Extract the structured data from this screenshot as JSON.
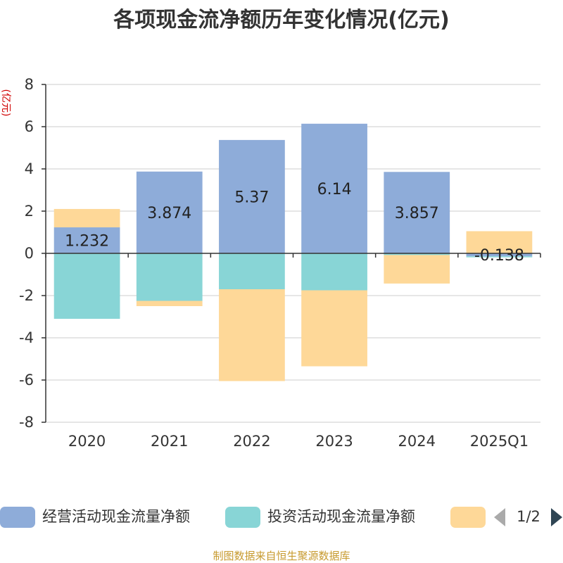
{
  "colors": {
    "operating": "#8eacd9",
    "investing": "#88d5d6",
    "financing": "#fed898",
    "axis": "#333333",
    "grid": "#cccccc",
    "ylabel": "#d00000",
    "source": "#c79a2e",
    "pager_inactive": "#aaaaaa",
    "pager_active": "#2f4554"
  },
  "legend": {
    "page": "1/2",
    "prev_icon": "triangle-left-icon",
    "next_icon": "triangle-right-icon"
  },
  "source": "制图数据来自恒生聚源数据库",
  "chart_data": {
    "type": "bar",
    "stacked": true,
    "title": "各项现金流净额历年变化情况(亿元)",
    "ylabel": "(亿元)",
    "xlabel": "",
    "ylim": [
      -8,
      8
    ],
    "yticks": [
      8,
      6,
      4,
      2,
      0,
      -2,
      -4,
      -6,
      -8
    ],
    "grid": true,
    "legend_position": "bottom",
    "categories": [
      "2020",
      "2021",
      "2022",
      "2023",
      "2024",
      "2025Q1"
    ],
    "series": [
      {
        "name": "经营活动现金流量净额",
        "color_key": "operating",
        "values": [
          1.232,
          3.874,
          5.37,
          6.14,
          3.857,
          -0.138
        ],
        "labels": [
          "1.232",
          "3.874",
          "5.37",
          "6.14",
          "3.857",
          "-0.138"
        ]
      },
      {
        "name": "投资活动现金流量净额",
        "color_key": "investing",
        "values": [
          -3.1,
          -2.25,
          -1.7,
          -1.75,
          -0.08,
          -0.05
        ],
        "labels": []
      },
      {
        "name": "",
        "color_key": "financing",
        "values": [
          0.87,
          -0.25,
          -4.35,
          -3.6,
          -1.35,
          1.05
        ],
        "labels": []
      }
    ]
  }
}
